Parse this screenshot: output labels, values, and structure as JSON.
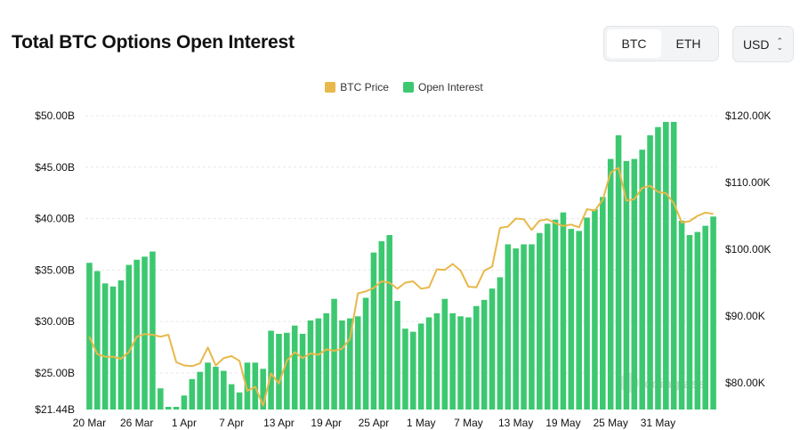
{
  "title": "Total BTC Options Open Interest",
  "toggle": {
    "options": [
      "BTC",
      "ETH"
    ],
    "active": "BTC"
  },
  "currency": {
    "selected": "USD"
  },
  "watermark": "coinglass",
  "colors": {
    "open_interest": "#3cc870",
    "btc_price": "#e8b84a",
    "grid": "#e6e8eb"
  },
  "chart_data": {
    "type": "bar",
    "title": "Total BTC Options Open Interest",
    "legend": [
      "BTC Price",
      "Open Interest"
    ],
    "legend_position": "top-center",
    "x_tick_labels": [
      "20 Mar",
      "26 Mar",
      "1 Apr",
      "7 Apr",
      "13 Apr",
      "19 Apr",
      "25 Apr",
      "1 May",
      "7 May",
      "13 May",
      "19 May",
      "25 May",
      "31 May"
    ],
    "y_left": {
      "min": 21.44,
      "max": 50.0,
      "ticks": [
        21.44,
        25,
        30,
        35,
        40,
        45,
        50
      ],
      "tick_labels": [
        "$21.44B",
        "$25.00B",
        "$30.00B",
        "$35.00B",
        "$40.00B",
        "$45.00B",
        "$50.00B"
      ]
    },
    "y_right": {
      "min": 76,
      "max": 120,
      "ticks": [
        80,
        90,
        100,
        110,
        120
      ],
      "tick_labels": [
        "$80.00K",
        "$90.00K",
        "$100.00K",
        "$110.00K",
        "$120.00K"
      ]
    },
    "grid": true,
    "series": [
      {
        "name": "Open Interest",
        "type": "bar",
        "axis": "left",
        "unit": "USD billions",
        "values": [
          35.7,
          34.9,
          33.7,
          33.4,
          34.0,
          35.5,
          36.0,
          36.3,
          36.8,
          23.5,
          21.7,
          21.7,
          22.8,
          24.4,
          25.1,
          26.0,
          25.6,
          25.2,
          23.9,
          23.1,
          26.0,
          26.0,
          25.4,
          29.1,
          28.8,
          28.9,
          29.6,
          28.8,
          30.1,
          30.3,
          30.8,
          32.2,
          30.1,
          30.3,
          30.5,
          32.3,
          36.7,
          37.8,
          38.4,
          32.0,
          29.3,
          29.0,
          29.8,
          30.4,
          30.8,
          32.2,
          30.8,
          30.5,
          30.4,
          31.5,
          32.1,
          33.2,
          34.3,
          37.5,
          37.1,
          37.5,
          37.5,
          38.6,
          39.5,
          39.9,
          40.6,
          39.0,
          38.8,
          40.1,
          40.9,
          42.1,
          45.8,
          48.1,
          45.6,
          45.8,
          46.7,
          48.1,
          48.9,
          49.4,
          49.4,
          39.8,
          38.4,
          38.7,
          39.3,
          40.2
        ]
      },
      {
        "name": "BTC Price",
        "type": "line",
        "axis": "right",
        "unit": "USD thousands",
        "values": [
          86.9,
          84.3,
          83.9,
          83.9,
          83.6,
          84.6,
          86.9,
          87.3,
          87.2,
          86.9,
          87.2,
          83.1,
          82.6,
          82.5,
          82.9,
          85.3,
          82.6,
          83.7,
          84.0,
          83.3,
          78.8,
          79.4,
          76.6,
          81.4,
          79.9,
          83.3,
          84.6,
          83.7,
          84.4,
          84.2,
          85.0,
          84.8,
          85.1,
          86.6,
          93.4,
          93.7,
          94.2,
          95.2,
          95.0,
          94.1,
          95.0,
          95.2,
          94.1,
          94.3,
          97.0,
          96.9,
          97.8,
          96.8,
          94.4,
          94.3,
          96.8,
          97.4,
          103.2,
          103.4,
          104.6,
          104.5,
          102.9,
          104.3,
          104.5,
          103.9,
          103.5,
          103.7,
          103.3,
          106.0,
          105.8,
          107.4,
          111.5,
          112.2,
          107.3,
          107.5,
          109.2,
          109.5,
          108.6,
          108.4,
          106.9,
          104.0,
          104.2,
          105.0,
          105.5,
          105.3
        ]
      }
    ]
  }
}
